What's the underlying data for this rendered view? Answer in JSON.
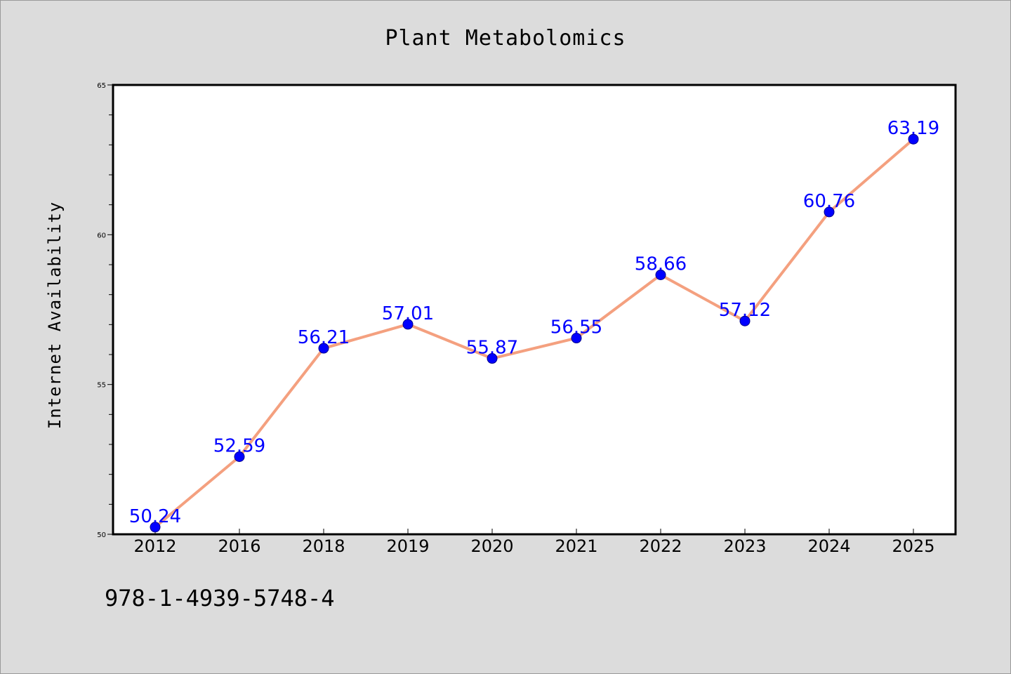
{
  "chart_data": {
    "type": "line",
    "title": "Plant Metabolomics",
    "xlabel": "",
    "ylabel": "Internet Availability",
    "categories": [
      "2012",
      "2016",
      "2018",
      "2019",
      "2020",
      "2021",
      "2022",
      "2023",
      "2024",
      "2025"
    ],
    "series": [
      {
        "values": [
          50.24,
          52.59,
          56.21,
          57.01,
          55.87,
          56.55,
          58.66,
          57.12,
          60.76,
          63.19
        ],
        "color": "#f4a07f",
        "marker_color": "#0000ff"
      }
    ],
    "data_labels": [
      "50.24",
      "52.59",
      "56.21",
      "57.01",
      "55.87",
      "56.55",
      "58.66",
      "57.12",
      "60.76",
      "63.19"
    ],
    "data_label_color": "#0000ff",
    "ylim": [
      50,
      65
    ],
    "yticks": [
      "50",
      "55",
      "60",
      "65"
    ],
    "grid": false,
    "legend": "none"
  },
  "footer": {
    "code": "978-1-4939-5748-4"
  },
  "colors": {
    "background": "#dcdcdc",
    "plot_background": "#ffffff"
  }
}
